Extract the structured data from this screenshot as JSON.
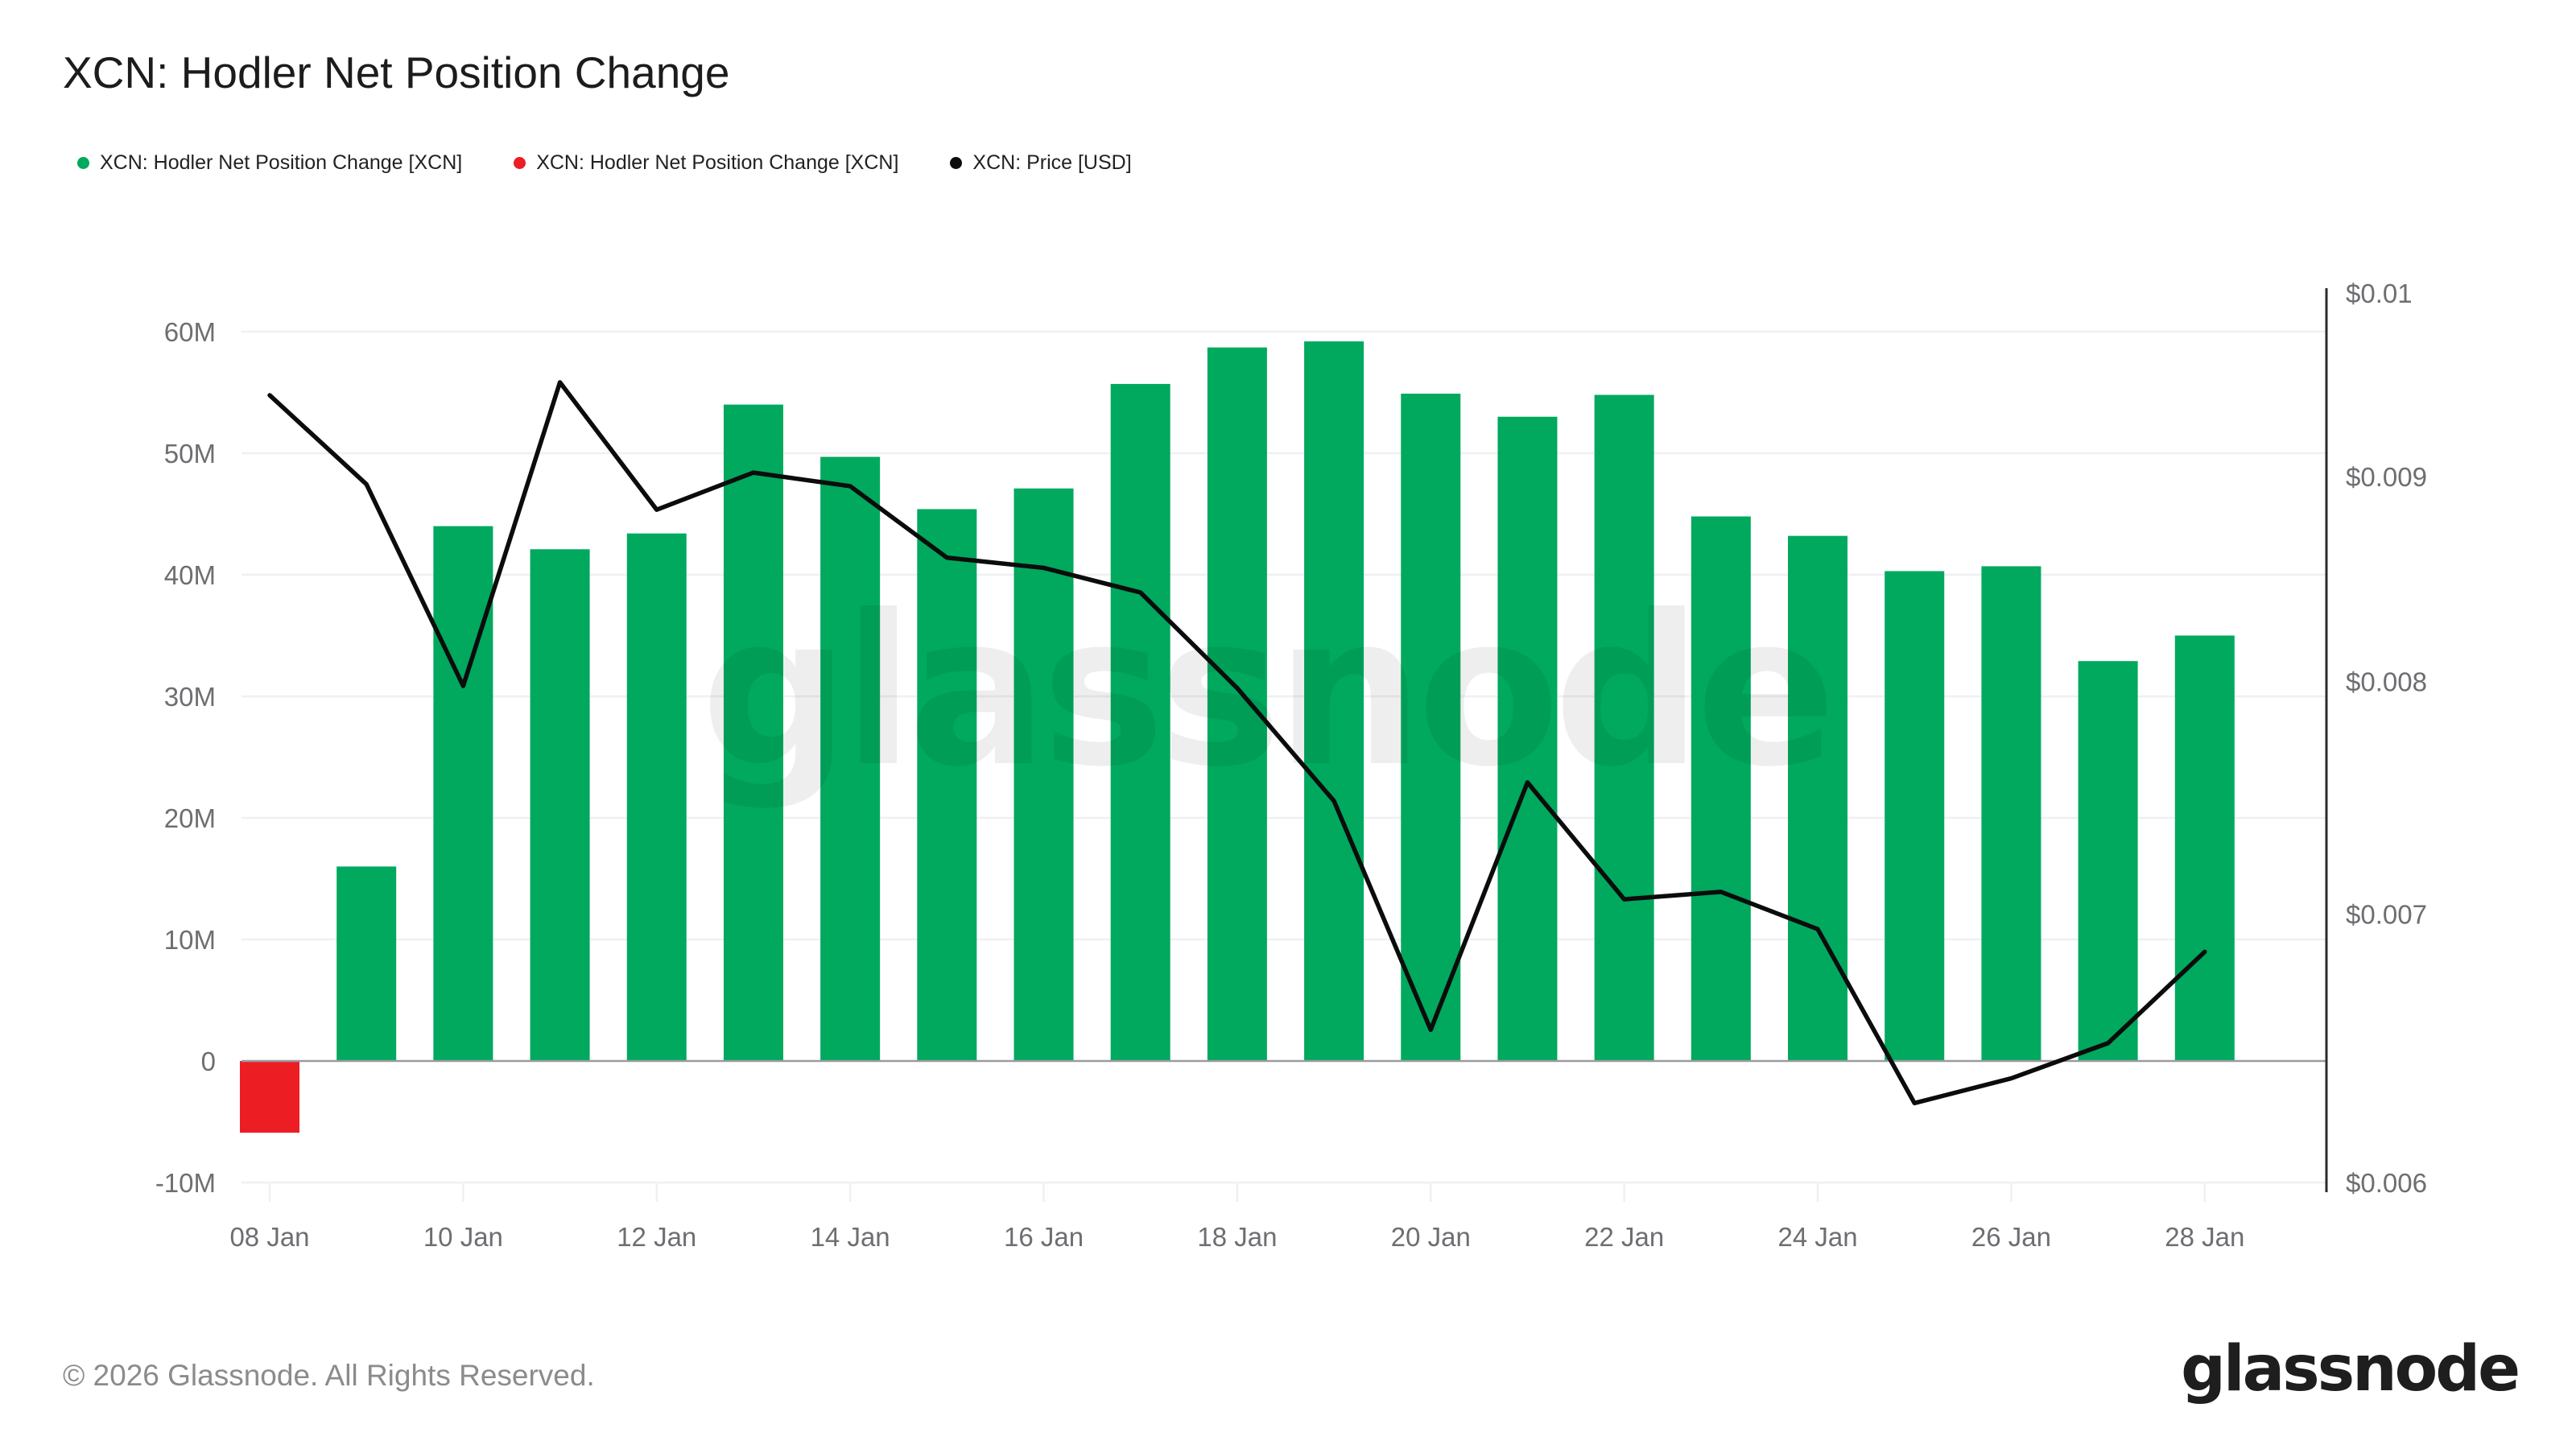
{
  "title": "XCN: Hodler Net Position Change",
  "legend": {
    "items": [
      {
        "label": "XCN: Hodler Net Position Change [XCN]",
        "color": "#00a95e"
      },
      {
        "label": "XCN: Hodler Net Position Change [XCN]",
        "color": "#ed1d24"
      },
      {
        "label": "XCN: Price [USD]",
        "color": "#0c0c0c"
      }
    ]
  },
  "watermark": "glassnode",
  "footer": {
    "copyright": "© 2026 Glassnode. All Rights Reserved.",
    "brand": "glassnode"
  },
  "chart_data": {
    "type": "bar",
    "title": "XCN: Hodler Net Position Change",
    "categories": [
      "08 Jan",
      "09 Jan",
      "10 Jan",
      "11 Jan",
      "12 Jan",
      "13 Jan",
      "14 Jan",
      "15 Jan",
      "16 Jan",
      "17 Jan",
      "18 Jan",
      "19 Jan",
      "20 Jan",
      "21 Jan",
      "22 Jan",
      "23 Jan",
      "24 Jan",
      "25 Jan",
      "26 Jan",
      "27 Jan",
      "28 Jan"
    ],
    "series": [
      {
        "name": "XCN: Hodler Net Position Change [XCN]",
        "type": "bar",
        "axis": "left",
        "unit": "millions of XCN",
        "values": [
          -5.9,
          16.0,
          44.0,
          42.1,
          43.4,
          54.0,
          49.7,
          45.4,
          47.1,
          55.7,
          58.7,
          59.2,
          54.9,
          53.0,
          54.8,
          44.8,
          43.2,
          40.3,
          40.7,
          32.9,
          35.0
        ],
        "positive_color": "#00a95e",
        "negative_color": "#ed1d24"
      },
      {
        "name": "XCN: Price [USD]",
        "type": "line",
        "axis": "right",
        "unit": "USD",
        "values": [
          0.00943,
          0.00896,
          0.00798,
          0.0095,
          0.00883,
          0.00902,
          0.00895,
          0.00859,
          0.00854,
          0.00842,
          0.00797,
          0.00747,
          0.00655,
          0.00755,
          0.00706,
          0.00709,
          0.00694,
          0.00628,
          0.00637,
          0.0065,
          0.00685
        ],
        "color": "#0c0c0c"
      }
    ],
    "left_axis": {
      "unit": "XCN",
      "tick_labels": [
        "60M",
        "50M",
        "40M",
        "30M",
        "20M",
        "10M",
        "0",
        "-10M"
      ],
      "tick_values_millions": [
        60,
        50,
        40,
        30,
        20,
        10,
        0,
        -10
      ],
      "range_millions": [
        -10,
        60
      ]
    },
    "right_axis": {
      "unit": "USD",
      "scale": "log",
      "tick_labels": [
        "$0.01",
        "$0.009",
        "$0.008",
        "$0.007",
        "$0.006"
      ],
      "tick_values": [
        0.01,
        0.009,
        0.008,
        0.007,
        0.006
      ],
      "range": [
        0.006,
        0.01
      ]
    },
    "x_axis": {
      "tick_labels": [
        "08 Jan",
        "10 Jan",
        "12 Jan",
        "14 Jan",
        "16 Jan",
        "18 Jan",
        "20 Jan",
        "22 Jan",
        "24 Jan",
        "26 Jan",
        "28 Jan"
      ],
      "tick_every_days": 2
    },
    "grid": "horizontal",
    "legend_position": "top-left",
    "colors": {
      "grid": "#f0f0f2",
      "zero_line": "#9a9aa0",
      "right_axis_line": "#2b2b2b",
      "axis_text": "#6e6e72"
    }
  }
}
